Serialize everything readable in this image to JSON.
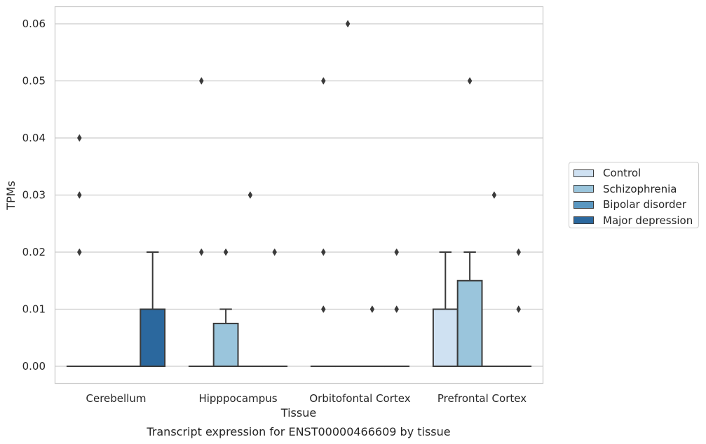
{
  "chart_data": {
    "type": "box",
    "title": "Transcript expression for ENST00000466609 by tissue",
    "xlabel": "Tissue",
    "ylabel": "TPMs",
    "categories": [
      "Cerebellum",
      "Hipppocampus",
      "Orbitofontal Cortex",
      "Prefrontal Cortex"
    ],
    "yticks": [
      "0.00",
      "0.01",
      "0.02",
      "0.03",
      "0.04",
      "0.05",
      "0.06"
    ],
    "ylim": [
      -0.003,
      0.063
    ],
    "grid": "horizontal",
    "legend_position": "right",
    "series": [
      {
        "name": "Control",
        "color": "#cfe1f2",
        "boxes": [
          {
            "q1": 0,
            "median": 0,
            "q3": 0,
            "whisker_low": 0,
            "whisker_high": 0,
            "outliers": [
              0.02,
              0.03,
              0.04
            ]
          },
          {
            "q1": 0,
            "median": 0,
            "q3": 0,
            "whisker_low": 0,
            "whisker_high": 0,
            "outliers": [
              0.02,
              0.05
            ]
          },
          {
            "q1": 0,
            "median": 0,
            "q3": 0,
            "whisker_low": 0,
            "whisker_high": 0,
            "outliers": [
              0.01,
              0.02,
              0.05
            ]
          },
          {
            "q1": 0,
            "median": 0,
            "q3": 0.01,
            "whisker_low": 0,
            "whisker_high": 0.02,
            "outliers": []
          }
        ]
      },
      {
        "name": "Schizophrenia",
        "color": "#9ac5dc",
        "boxes": [
          {
            "q1": 0,
            "median": 0,
            "q3": 0,
            "whisker_low": 0,
            "whisker_high": 0,
            "outliers": []
          },
          {
            "q1": 0,
            "median": 0,
            "q3": 0.0075,
            "whisker_low": 0,
            "whisker_high": 0.01,
            "outliers": [
              0.02
            ]
          },
          {
            "q1": 0,
            "median": 0,
            "q3": 0,
            "whisker_low": 0,
            "whisker_high": 0,
            "outliers": [
              0.06
            ]
          },
          {
            "q1": 0,
            "median": 0,
            "q3": 0.015,
            "whisker_low": 0,
            "whisker_high": 0.02,
            "outliers": [
              0.05
            ]
          }
        ]
      },
      {
        "name": "Bipolar disorder",
        "color": "#5a97c1",
        "boxes": [
          {
            "q1": 0,
            "median": 0,
            "q3": 0,
            "whisker_low": 0,
            "whisker_high": 0,
            "outliers": []
          },
          {
            "q1": 0,
            "median": 0,
            "q3": 0,
            "whisker_low": 0,
            "whisker_high": 0,
            "outliers": [
              0.03
            ]
          },
          {
            "q1": 0,
            "median": 0,
            "q3": 0,
            "whisker_low": 0,
            "whisker_high": 0,
            "outliers": [
              0.01
            ]
          },
          {
            "q1": 0,
            "median": 0,
            "q3": 0,
            "whisker_low": 0,
            "whisker_high": 0,
            "outliers": [
              0.03
            ]
          }
        ]
      },
      {
        "name": "Major depression",
        "color": "#2b689e",
        "boxes": [
          {
            "q1": 0,
            "median": 0,
            "q3": 0.01,
            "whisker_low": 0,
            "whisker_high": 0.02,
            "outliers": []
          },
          {
            "q1": 0,
            "median": 0,
            "q3": 0,
            "whisker_low": 0,
            "whisker_high": 0,
            "outliers": [
              0.02
            ]
          },
          {
            "q1": 0,
            "median": 0,
            "q3": 0,
            "whisker_low": 0,
            "whisker_high": 0,
            "outliers": [
              0.01,
              0.02
            ]
          },
          {
            "q1": 0,
            "median": 0,
            "q3": 0,
            "whisker_low": 0,
            "whisker_high": 0,
            "outliers": [
              0.01,
              0.02
            ]
          }
        ]
      }
    ]
  }
}
